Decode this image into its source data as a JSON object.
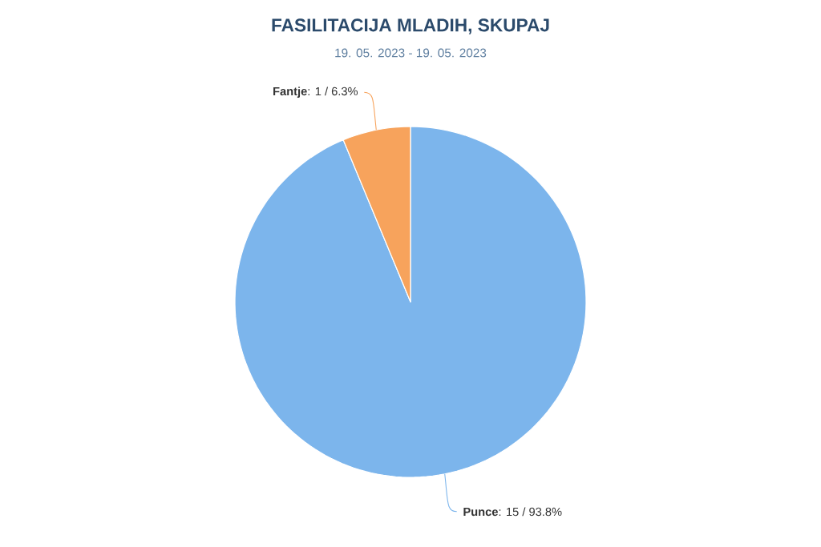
{
  "chart_data": {
    "type": "pie",
    "title": "FASILITACIJA MLADIH, SKUPAJ",
    "subtitle": "19. 05. 2023 - 19. 05. 2023",
    "categories": [
      "Punce",
      "Fantje"
    ],
    "values": [
      15,
      1
    ],
    "colors": [
      "#7cb5ec",
      "#f7a35c"
    ],
    "value_labels": [
      ": 15 / 93.8%",
      ": 1 / 6.3%"
    ]
  }
}
